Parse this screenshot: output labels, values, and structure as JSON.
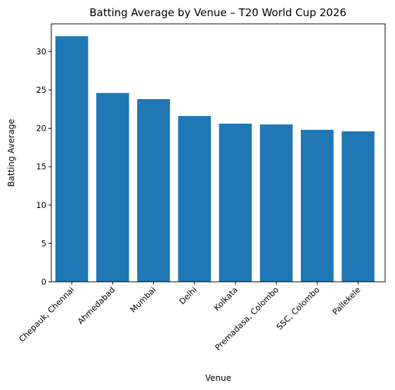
{
  "chart_data": {
    "type": "bar",
    "title": "Batting Average by Venue – T20 World Cup 2026",
    "xlabel": "Venue",
    "ylabel": "Batting Average",
    "categories": [
      "Chepauk, Chennai",
      "Ahmedabad",
      "Mumbai",
      "Delhi",
      "Kolkata",
      "Premadasa, Colombo",
      "SSC, Colombo",
      "Pallekele"
    ],
    "values": [
      32.0,
      24.6,
      23.8,
      21.6,
      20.6,
      20.5,
      19.8,
      19.6
    ],
    "ylim": [
      0,
      33.6
    ],
    "yticks": [
      0,
      5,
      10,
      15,
      20,
      25,
      30
    ],
    "grid": false,
    "bar_color": "#1f77b4"
  }
}
